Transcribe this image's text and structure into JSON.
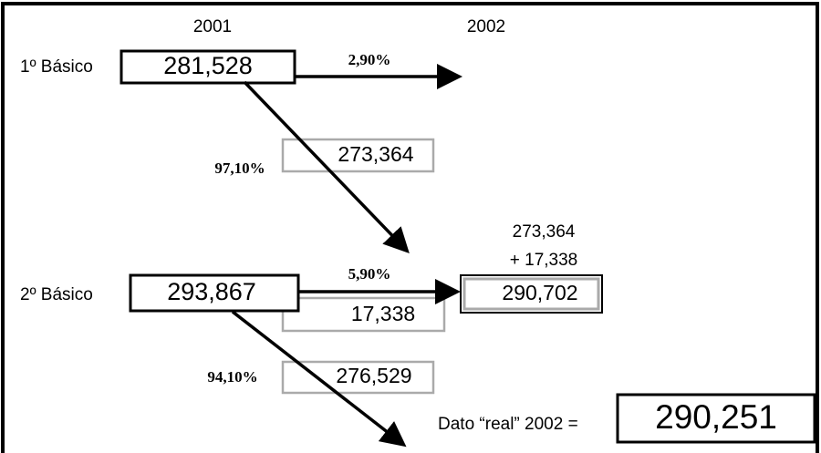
{
  "headers": {
    "year1": "2001",
    "year2": "2002"
  },
  "rows": [
    {
      "label": "1º Básico",
      "value": "281,528",
      "transition": "2,90%",
      "retained_pct": "97,10%",
      "retained_value": "273,364"
    },
    {
      "label": "2º Básico",
      "value": "293,867",
      "transition": "5,90%",
      "repeat_value": "17,338",
      "retained_pct": "94,10%",
      "retained_value": "276,529"
    }
  ],
  "sum": {
    "line1": "273,364",
    "line2": "+ 17,338",
    "result": "290,702"
  },
  "real": {
    "label": "Dato “real” 2002 =",
    "value": "290,251"
  }
}
